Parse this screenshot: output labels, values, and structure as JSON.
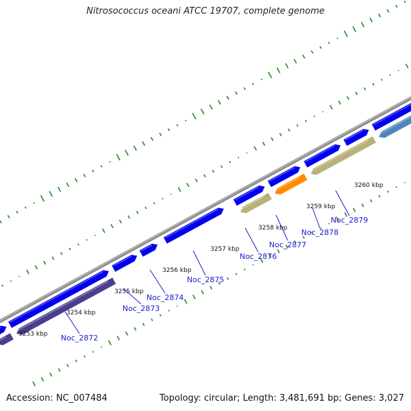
{
  "title": "Nitrosococcus oceani ATCC 19707, complete genome",
  "footer": {
    "accession": "Accession: NC_007484",
    "summary": "Topology: circular; Length: 3,481,691 bp; Genes: 3,027"
  },
  "colors": {
    "cds_forward": "#0000ee",
    "cds_reverse_violet": "#4a3f8f",
    "cds_reverse_olive": "#b8b27a",
    "cds_orange": "#ff8c00",
    "cds_steelblue": "#4f86bd",
    "backbone": "#8c8c8c",
    "gc_ticks": "#1f8a1f",
    "label_blue": "#1a1acc"
  },
  "scale_labels": [
    "3253 kbp",
    "3254 kbp",
    "3255 kbp",
    "3256 kbp",
    "3257 kbp",
    "3258 kbp",
    "3259 kbp",
    "3260 kbp"
  ],
  "gene_labels": [
    "Noc_2872",
    "Noc_2873",
    "Noc_2874",
    "Noc_2875",
    "Noc_2876",
    "Noc_2877",
    "Noc_2878",
    "Noc_2879"
  ]
}
